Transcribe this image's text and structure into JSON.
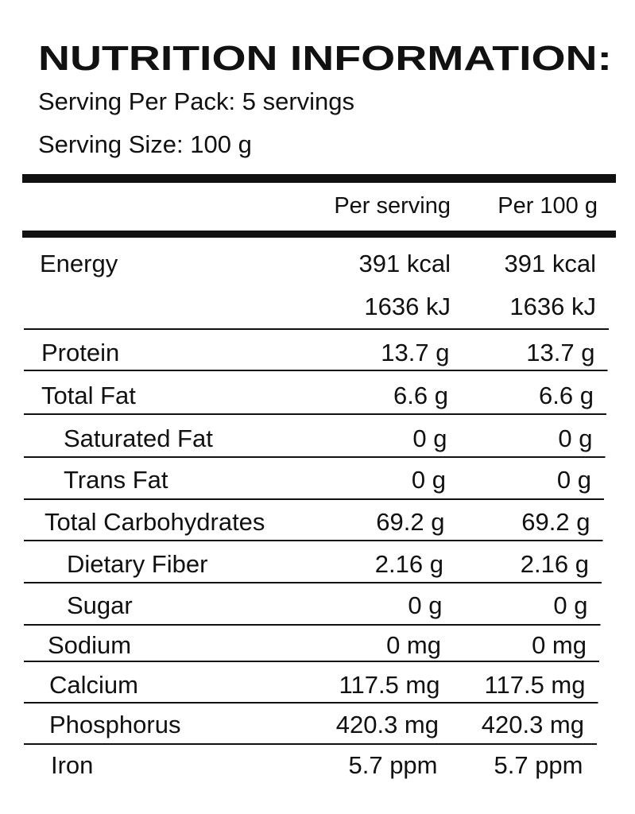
{
  "header": {
    "title": "NUTRITION INFORMATION:",
    "servings_per_pack": "Serving Per Pack: 5 servings",
    "serving_size": "Serving Size: 100 g"
  },
  "table": {
    "columns": [
      "Per serving",
      "Per 100 g"
    ],
    "rows": [
      {
        "label": "Energy",
        "per_serving": [
          "391 kcal",
          "1636 kJ"
        ],
        "per_100g": [
          "391 kcal",
          "1636 kJ"
        ]
      },
      {
        "label": "Protein",
        "per_serving": "13.7 g",
        "per_100g": "13.7 g"
      },
      {
        "label": "Total Fat",
        "per_serving": "6.6 g",
        "per_100g": "6.6 g"
      },
      {
        "label": "Saturated Fat",
        "per_serving": "0 g",
        "per_100g": "0 g"
      },
      {
        "label": "Trans Fat",
        "per_serving": "0 g",
        "per_100g": "0 g"
      },
      {
        "label": "Total Carbohydrates",
        "per_serving": "69.2 g",
        "per_100g": "69.2 g"
      },
      {
        "label": "Dietary Fiber",
        "per_serving": "2.16 g",
        "per_100g": "2.16 g"
      },
      {
        "label": "Sugar",
        "per_serving": "0 g",
        "per_100g": "0 g"
      },
      {
        "label": "Sodium",
        "per_serving": "0 mg",
        "per_100g": "0 mg"
      },
      {
        "label": "Calcium",
        "per_serving": "117.5 mg",
        "per_100g": "117.5 mg"
      },
      {
        "label": "Phosphorus",
        "per_serving": "420.3 mg",
        "per_100g": "420.3 mg"
      },
      {
        "label": "Iron",
        "per_serving": "5.7 ppm",
        "per_100g": "5.7 ppm"
      }
    ]
  }
}
